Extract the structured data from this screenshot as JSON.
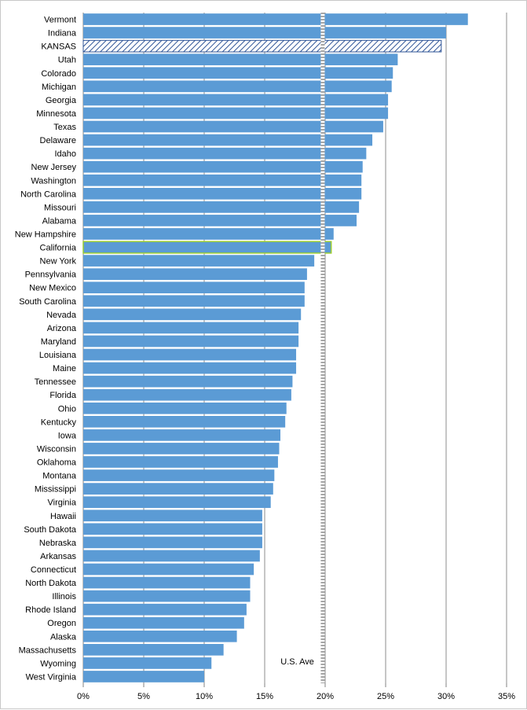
{
  "chart_data": {
    "type": "bar",
    "orientation": "horizontal",
    "title": "",
    "xlabel": "",
    "ylabel": "",
    "xlim": [
      0,
      35
    ],
    "x_ticks": [
      "0%",
      "5%",
      "10%",
      "15%",
      "20%",
      "25%",
      "30%",
      "35%"
    ],
    "gridlines": "vertical",
    "bar_color": "#5b9bd5",
    "highlight_category": "KANSAS",
    "highlight_style": "hatched",
    "outlined_category": "California",
    "outline_color": "#9acd32",
    "reference_line": {
      "label": "U.S. Ave",
      "value": 19.8,
      "style": "dashed"
    },
    "categories": [
      "Vermont",
      "Indiana",
      "KANSAS",
      "Utah",
      "Colorado",
      "Michigan",
      "Georgia",
      "Minnesota",
      "Texas",
      "Delaware",
      "Idaho",
      "New Jersey",
      "Washington",
      "North Carolina",
      "Missouri",
      "Alabama",
      "New Hampshire",
      "California",
      "New York",
      "Pennsylvania",
      "New Mexico",
      "South Carolina",
      "Nevada",
      "Arizona",
      "Maryland",
      "Louisiana",
      "Maine",
      "Tennessee",
      "Florida",
      "Ohio",
      "Kentucky",
      "Iowa",
      "Wisconsin",
      "Oklahoma",
      "Montana",
      "Mississippi",
      "Virginia",
      "Hawaii",
      "South Dakota",
      "Nebraska",
      "Arkansas",
      "Connecticut",
      "North Dakota",
      "Illinois",
      "Rhode Island",
      "Oregon",
      "Alaska",
      "Massachusetts",
      "Wyoming",
      "West Virginia"
    ],
    "values": [
      31.8,
      30.0,
      29.6,
      26.0,
      25.6,
      25.5,
      25.2,
      25.2,
      24.8,
      23.9,
      23.4,
      23.1,
      23.0,
      23.0,
      22.8,
      22.6,
      20.7,
      20.5,
      19.1,
      18.5,
      18.3,
      18.3,
      18.0,
      17.8,
      17.8,
      17.6,
      17.6,
      17.3,
      17.2,
      16.8,
      16.7,
      16.3,
      16.2,
      16.1,
      15.8,
      15.7,
      15.5,
      14.8,
      14.8,
      14.8,
      14.6,
      14.1,
      13.8,
      13.8,
      13.5,
      13.3,
      12.7,
      11.6,
      10.6,
      10.0
    ]
  }
}
